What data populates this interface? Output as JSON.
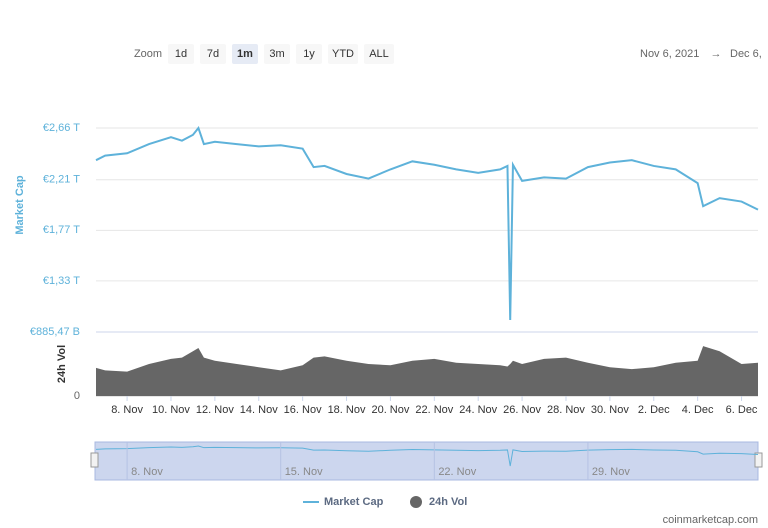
{
  "zoom_label": "Zoom",
  "zoom_buttons": [
    "1d",
    "7d",
    "1m",
    "3m",
    "1y",
    "YTD",
    "ALL"
  ],
  "active_zoom": "1m",
  "range_from": "Nov 6, 2021",
  "range_arrow": "→",
  "range_to": "Dec 6,",
  "credit": "coinmarketcap.com",
  "chart_data": {
    "type": "line",
    "y_label": "Market Cap",
    "y2_label": "24h Vol",
    "x": [
      "2021-11-06T14:00",
      "2021-11-07T00:00",
      "2021-11-08T00:00",
      "2021-11-09T00:00",
      "2021-11-10T00:00",
      "2021-11-10T12:00",
      "2021-11-11T00:00",
      "2021-11-11T06:00",
      "2021-11-11T12:00",
      "2021-11-12T00:00",
      "2021-11-13T00:00",
      "2021-11-14T00:00",
      "2021-11-15T00:00",
      "2021-11-16T00:00",
      "2021-11-16T12:00",
      "2021-11-17T00:00",
      "2021-11-18T00:00",
      "2021-11-19T00:00",
      "2021-11-20T00:00",
      "2021-11-21T00:00",
      "2021-11-22T00:00",
      "2021-11-23T00:00",
      "2021-11-24T00:00",
      "2021-11-25T00:00",
      "2021-11-25T08:00",
      "2021-11-25T11:00",
      "2021-11-25T14:00",
      "2021-11-26T00:00",
      "2021-11-27T00:00",
      "2021-11-28T00:00",
      "2021-11-29T00:00",
      "2021-11-30T00:00",
      "2021-12-01T00:00",
      "2021-12-02T00:00",
      "2021-12-03T00:00",
      "2021-12-04T00:00",
      "2021-12-04T06:00",
      "2021-12-05T00:00",
      "2021-12-06T00:00",
      "2021-12-06T18:00"
    ],
    "series": [
      {
        "name": "Market Cap",
        "color": "#5eb2da",
        "values": [
          2.38,
          2.42,
          2.44,
          2.52,
          2.58,
          2.55,
          2.6,
          2.66,
          2.52,
          2.54,
          2.52,
          2.5,
          2.51,
          2.48,
          2.32,
          2.33,
          2.26,
          2.22,
          2.3,
          2.37,
          2.34,
          2.3,
          2.27,
          2.3,
          2.33,
          0.99,
          2.34,
          2.2,
          2.23,
          2.22,
          2.32,
          2.36,
          2.38,
          2.33,
          2.3,
          2.18,
          1.98,
          2.05,
          2.02,
          1.95
        ]
      },
      {
        "name": "24h Vol",
        "color": "#666666",
        "axis": "y2",
        "values": [
          44,
          40,
          38,
          50,
          58,
          60,
          70,
          75,
          60,
          55,
          50,
          45,
          40,
          48,
          60,
          62,
          55,
          50,
          48,
          55,
          58,
          52,
          50,
          48,
          46,
          50,
          55,
          50,
          58,
          60,
          52,
          45,
          42,
          45,
          52,
          55,
          78,
          70,
          50,
          52
        ]
      }
    ],
    "xlim": [
      "2021-11-06T14:00",
      "2021-12-06T18:00"
    ],
    "xticks": [
      {
        "value": "2021-11-08T00:00",
        "label": "8. Nov"
      },
      {
        "value": "2021-11-10T00:00",
        "label": "10. Nov"
      },
      {
        "value": "2021-11-12T00:00",
        "label": "12. Nov"
      },
      {
        "value": "2021-11-14T00:00",
        "label": "14. Nov"
      },
      {
        "value": "2021-11-16T00:00",
        "label": "16. Nov"
      },
      {
        "value": "2021-11-18T00:00",
        "label": "18. Nov"
      },
      {
        "value": "2021-11-20T00:00",
        "label": "20. Nov"
      },
      {
        "value": "2021-11-22T00:00",
        "label": "22. Nov"
      },
      {
        "value": "2021-11-24T00:00",
        "label": "24. Nov"
      },
      {
        "value": "2021-11-26T00:00",
        "label": "26. Nov"
      },
      {
        "value": "2021-11-28T00:00",
        "label": "28. Nov"
      },
      {
        "value": "2021-11-30T00:00",
        "label": "30. Nov"
      },
      {
        "value": "2021-12-02T00:00",
        "label": "2. Dec"
      },
      {
        "value": "2021-12-04T00:00",
        "label": "4. Dec"
      },
      {
        "value": "2021-12-06T00:00",
        "label": "6. Dec"
      }
    ],
    "ylim": [
      0.88547,
      2.66
    ],
    "yticks": [
      {
        "value": 0.88547,
        "label": "€885,47 B"
      },
      {
        "value": 1.33,
        "label": "€1,33 T"
      },
      {
        "value": 1.77,
        "label": "€1,77 T"
      },
      {
        "value": 2.21,
        "label": "€2,21 T"
      },
      {
        "value": 2.66,
        "label": "€2,66 T"
      }
    ],
    "y2lim": [
      0,
      100
    ],
    "y2ticks": [
      0
    ],
    "navigator_xticks": [
      {
        "value": "2021-11-08T00:00",
        "label": "8. Nov"
      },
      {
        "value": "2021-11-15T00:00",
        "label": "15. Nov"
      },
      {
        "value": "2021-11-22T00:00",
        "label": "22. Nov"
      },
      {
        "value": "2021-11-29T00:00",
        "label": "29. Nov"
      }
    ],
    "grid": true,
    "legend": "bottom"
  }
}
